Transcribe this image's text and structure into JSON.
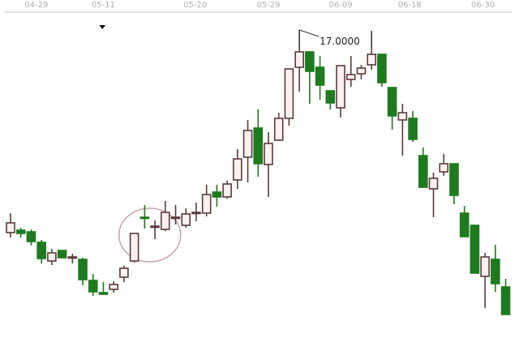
{
  "chart_data": {
    "type": "candlestick",
    "title": "",
    "xlabel": "",
    "ylabel": "",
    "grid": false,
    "colors": {
      "up_fill": "#fdf0f0",
      "up_stroke": "#5b3b3b",
      "down": "#1e7a1e",
      "highlight_ellipse": "#c9a3a8"
    },
    "x_ticks": [
      {
        "label": "04-29",
        "at_index": 2.5
      },
      {
        "label": "05-11",
        "at_index": 9
      },
      {
        "label": "05-20",
        "at_index": 17.9
      },
      {
        "label": "05-29",
        "at_index": 25
      },
      {
        "label": "06-09",
        "at_index": 32
      },
      {
        "label": "06-18",
        "at_index": 38.7
      },
      {
        "label": "06-30",
        "at_index": 45.8
      }
    ],
    "max_annotation": {
      "label": "17.0000",
      "value": 17.0,
      "from_index": 28,
      "to_index": 35
    },
    "marker": {
      "type": "triangle-down",
      "at_index": 8.9
    },
    "highlight": {
      "type": "ellipse",
      "from_index": 12,
      "to_index": 15
    },
    "candles": [
      [
        12.0,
        12.48,
        11.88,
        12.24
      ],
      [
        12.06,
        12.12,
        11.88,
        11.98
      ],
      [
        12.02,
        12.08,
        11.68,
        11.78
      ],
      [
        11.76,
        11.82,
        11.24,
        11.36
      ],
      [
        11.3,
        11.6,
        11.2,
        11.5
      ],
      [
        11.56,
        11.56,
        11.38,
        11.38
      ],
      [
        11.38,
        11.48,
        11.24,
        11.4
      ],
      [
        11.34,
        11.38,
        10.7,
        10.84
      ],
      [
        10.82,
        10.98,
        10.44,
        10.54
      ],
      [
        10.52,
        10.78,
        10.46,
        10.48
      ],
      [
        10.6,
        10.8,
        10.52,
        10.72
      ],
      [
        10.9,
        11.18,
        10.78,
        11.12
      ],
      [
        11.3,
        11.98,
        11.26,
        11.98
      ],
      [
        12.38,
        12.68,
        12.1,
        12.36
      ],
      [
        12.14,
        12.3,
        11.84,
        12.16
      ],
      [
        12.08,
        12.78,
        12.04,
        12.5
      ],
      [
        12.36,
        12.68,
        12.2,
        12.38
      ],
      [
        12.18,
        12.6,
        12.12,
        12.46
      ],
      [
        12.48,
        12.74,
        12.28,
        12.5
      ],
      [
        12.48,
        13.18,
        12.4,
        12.94
      ],
      [
        13.0,
        13.18,
        12.64,
        12.88
      ],
      [
        12.88,
        13.28,
        12.84,
        13.2
      ],
      [
        13.3,
        14.06,
        13.08,
        13.82
      ],
      [
        13.86,
        14.78,
        13.24,
        14.52
      ],
      [
        14.58,
        15.04,
        13.38,
        13.7
      ],
      [
        13.68,
        14.48,
        12.88,
        14.2
      ],
      [
        14.28,
        14.96,
        14.26,
        14.82
      ],
      [
        14.82,
        16.04,
        14.64,
        16.04
      ],
      [
        16.08,
        17.0,
        15.48,
        16.46
      ],
      [
        16.46,
        16.46,
        15.18,
        15.98
      ],
      [
        16.08,
        16.36,
        15.28,
        15.64
      ],
      [
        15.5,
        15.5,
        15.04,
        15.2
      ],
      [
        15.08,
        16.12,
        14.84,
        16.12
      ],
      [
        15.78,
        16.36,
        15.6,
        15.9
      ],
      [
        15.92,
        16.14,
        15.78,
        16.06
      ],
      [
        16.14,
        16.98,
        16.02,
        16.4
      ],
      [
        16.4,
        16.4,
        15.6,
        15.7
      ],
      [
        15.58,
        15.58,
        14.54,
        14.88
      ],
      [
        14.78,
        15.18,
        13.9,
        14.96
      ],
      [
        14.82,
        15.0,
        14.24,
        14.3
      ],
      [
        13.9,
        14.1,
        13.12,
        13.12
      ],
      [
        13.08,
        13.48,
        12.38,
        13.34
      ],
      [
        13.5,
        13.94,
        13.4,
        13.7
      ],
      [
        13.7,
        13.7,
        12.7,
        12.92
      ],
      [
        12.48,
        12.66,
        11.9,
        11.9
      ],
      [
        12.18,
        12.18,
        11.0,
        11.0
      ],
      [
        10.92,
        11.5,
        10.14,
        11.4
      ],
      [
        11.34,
        11.7,
        10.54,
        10.74
      ],
      [
        10.66,
        10.86,
        9.98,
        9.98
      ]
    ],
    "candle_fields": [
      "open",
      "high",
      "low",
      "close"
    ]
  }
}
